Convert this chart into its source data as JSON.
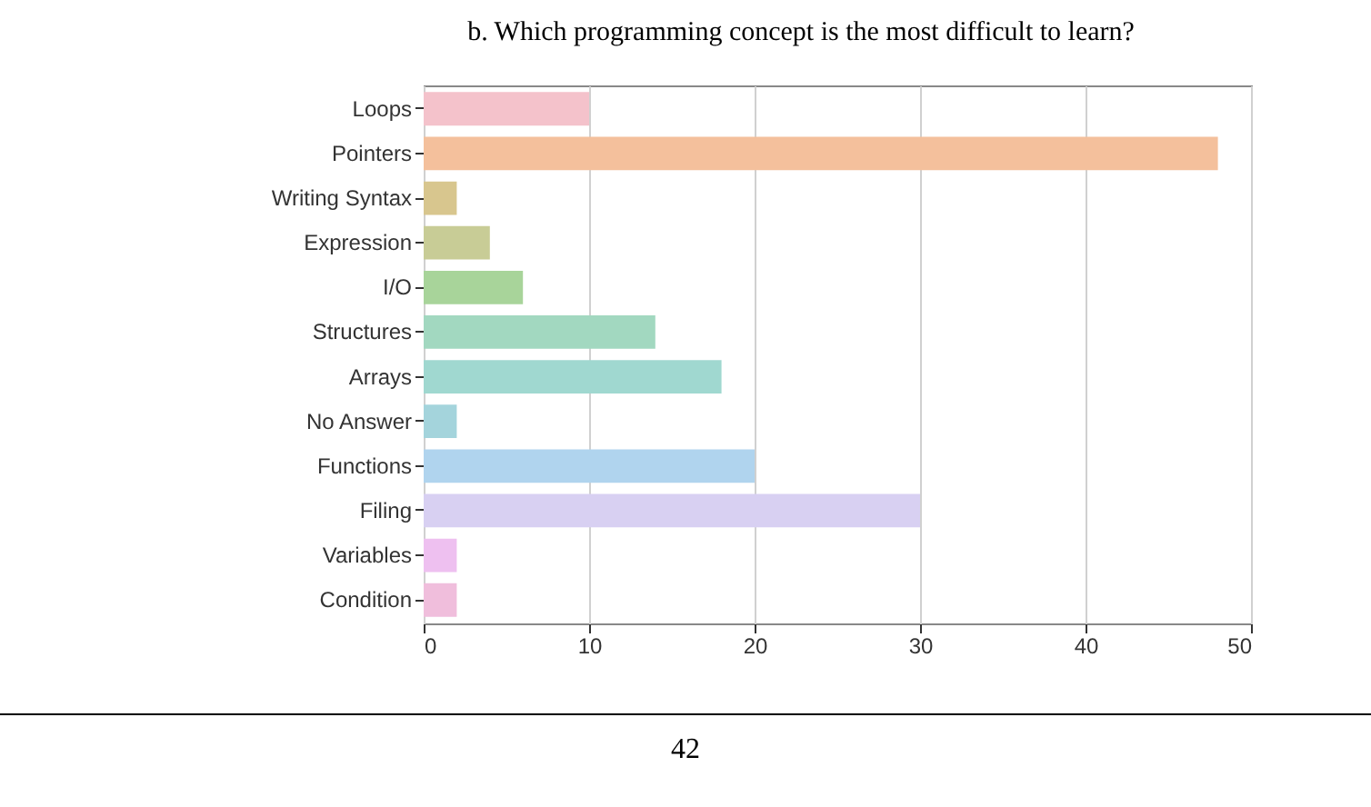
{
  "chart_data": {
    "type": "bar",
    "orientation": "horizontal",
    "title": "b. Which programming concept is the most difficult to learn?",
    "categories": [
      "Loops",
      "Pointers",
      "Writing Syntax",
      "Expression",
      "I/O",
      "Structures",
      "Arrays",
      "No Answer",
      "Functions",
      "Filing",
      "Variables",
      "Condition"
    ],
    "values": [
      10,
      48,
      2,
      4,
      6,
      14,
      18,
      2,
      20,
      30,
      2,
      2
    ],
    "colors": [
      "#f4c2cb",
      "#f4c09c",
      "#d8c68e",
      "#c8cc96",
      "#a8d49a",
      "#a2d8c0",
      "#a0d8d0",
      "#a4d4dc",
      "#b0d4ee",
      "#d8d0f2",
      "#eec0f0",
      "#f0bedc"
    ],
    "xlim": [
      0,
      50
    ],
    "xticks": [
      0,
      10,
      20,
      30,
      40,
      50
    ],
    "grid": "x",
    "annotations": [
      "42"
    ]
  }
}
